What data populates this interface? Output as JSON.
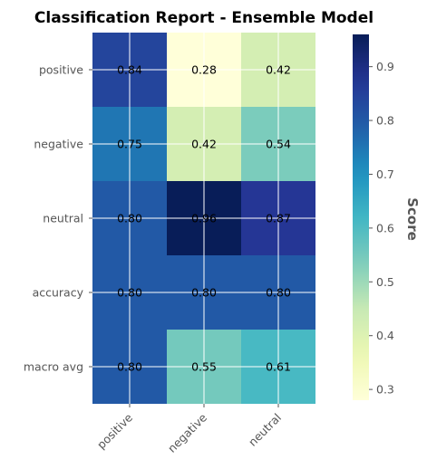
{
  "chart_data": {
    "type": "heatmap",
    "title": "Classification Report - Ensemble Model",
    "x_categories": [
      "positive",
      "negative",
      "neutral"
    ],
    "y_categories": [
      "positive",
      "negative",
      "neutral",
      "accuracy",
      "macro avg"
    ],
    "values": [
      [
        0.84,
        0.28,
        0.42
      ],
      [
        0.75,
        0.42,
        0.54
      ],
      [
        0.8,
        0.96,
        0.87
      ],
      [
        0.8,
        0.8,
        0.8
      ],
      [
        0.8,
        0.55,
        0.61
      ]
    ],
    "cell_labels": [
      [
        "0.84",
        "0.28",
        "0.42"
      ],
      [
        "0.75",
        "0.42",
        "0.54"
      ],
      [
        "0.80",
        "0.96",
        "0.87"
      ],
      [
        "0.80",
        "0.80",
        "0.80"
      ],
      [
        "0.80",
        "0.55",
        "0.61"
      ]
    ],
    "colormap": "YlGnBu",
    "colorbar": {
      "label": "Score",
      "range": [
        0.28,
        0.96
      ],
      "ticks": [
        0.3,
        0.4,
        0.5,
        0.6,
        0.7,
        0.8,
        0.9
      ],
      "tick_labels": [
        "0.3",
        "0.4",
        "0.5",
        "0.6",
        "0.7",
        "0.8",
        "0.9"
      ]
    },
    "grid": true
  }
}
